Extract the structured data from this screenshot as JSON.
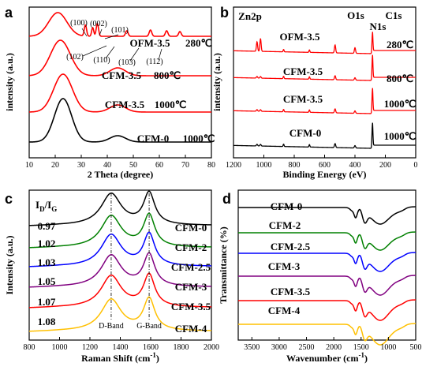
{
  "chart_data": [
    {
      "panel_label": "a",
      "type": "line",
      "xlabel": "2 Theta (degree)",
      "ylabel": "intensity (a.u.)",
      "xlim": [
        10,
        80
      ],
      "xticks": [
        "10",
        "20",
        "30",
        "40",
        "50",
        "60",
        "70",
        "80"
      ],
      "series": [
        {
          "name": "CFM-0",
          "temp": "1000℃",
          "color": "#000000",
          "peaks": [
            23,
            44
          ]
        },
        {
          "name": "CFM-3.5",
          "temp": "1000℃",
          "color": "#ff0000",
          "peaks": [
            23,
            44
          ]
        },
        {
          "name": "CFM-3.5",
          "temp": "800℃",
          "color": "#ff0000",
          "peaks": [
            22,
            44
          ]
        },
        {
          "name": "OFM-3.5",
          "temp": "280℃",
          "color": "#ff0000",
          "peaks": [
            21,
            31.6,
            34.4,
            36.2,
            47.5,
            56.6,
            62.8,
            67.9
          ]
        }
      ],
      "annotations": [
        "(100)",
        "(002)",
        "(101)",
        "(102)",
        "(110)",
        "(103)",
        "(112)"
      ]
    },
    {
      "panel_label": "b",
      "type": "line",
      "xlabel": "Binding Energy (eV)",
      "ylabel": "intensity (a.u.)",
      "xlim": [
        1200,
        0
      ],
      "xticks": [
        "1200",
        "1000",
        "800",
        "600",
        "400",
        "200",
        "0"
      ],
      "series": [
        {
          "name": "CFM-0",
          "temp": "1000℃",
          "color": "#000000"
        },
        {
          "name": "CFM-3.5",
          "temp": "1000℃",
          "color": "#ff0000"
        },
        {
          "name": "CFM-3.5",
          "temp": "800℃",
          "color": "#ff0000"
        },
        {
          "name": "OFM-3.5",
          "temp": "280℃",
          "color": "#ff0000"
        }
      ],
      "peak_labels": [
        {
          "label": "Zn2p",
          "x": 1035
        },
        {
          "label": "O1s",
          "x": 531
        },
        {
          "label": "N1s",
          "x": 400
        },
        {
          "label": "C1s",
          "x": 285
        }
      ]
    },
    {
      "panel_label": "c",
      "type": "line",
      "xlabel": "Raman Shift (cm",
      "xlabel_sup": "-1",
      "xlabel_end": ")",
      "ylabel": "Intensity (a.u.)",
      "xlim": [
        800,
        2000
      ],
      "xticks": [
        "800",
        "1000",
        "1200",
        "1400",
        "1600",
        "1800",
        "2000"
      ],
      "ratio_header": {
        "main": "I",
        "sub1": "D",
        "mid": "/I",
        "sub2": "G"
      },
      "d_band": {
        "label": "D-Band",
        "x": 1340
      },
      "g_band": {
        "label": "G-Band",
        "x": 1590
      },
      "series": [
        {
          "name": "CFM-0",
          "ratio": "0.97",
          "color": "#000000"
        },
        {
          "name": "CFM-2",
          "ratio": "1.02",
          "color": "#008000"
        },
        {
          "name": "CFM-2.5",
          "ratio": "1.03",
          "color": "#0000ff"
        },
        {
          "name": "CFM-3",
          "ratio": "1.05",
          "color": "#800080"
        },
        {
          "name": "CFM-3.5",
          "ratio": "1.07",
          "color": "#ff0000"
        },
        {
          "name": "CFM-4",
          "ratio": "1.08",
          "color": "#ffc000"
        }
      ]
    },
    {
      "panel_label": "d",
      "type": "line",
      "xlabel": "Wavenumber (cm",
      "xlabel_sup": "-1",
      "xlabel_end": ")",
      "ylabel": "Transmittance (%)",
      "xlim": [
        3750,
        500
      ],
      "xticks": [
        "3500",
        "3000",
        "2500",
        "2000",
        "1500",
        "1000",
        "500"
      ],
      "series": [
        {
          "name": "CFM-0",
          "color": "#000000"
        },
        {
          "name": "CFM-2",
          "color": "#008000"
        },
        {
          "name": "CFM-2.5",
          "color": "#0000ff"
        },
        {
          "name": "CFM-3",
          "color": "#800080"
        },
        {
          "name": "CFM-3.5",
          "color": "#ff0000"
        },
        {
          "name": "CFM-4",
          "color": "#ffc000"
        }
      ]
    }
  ]
}
